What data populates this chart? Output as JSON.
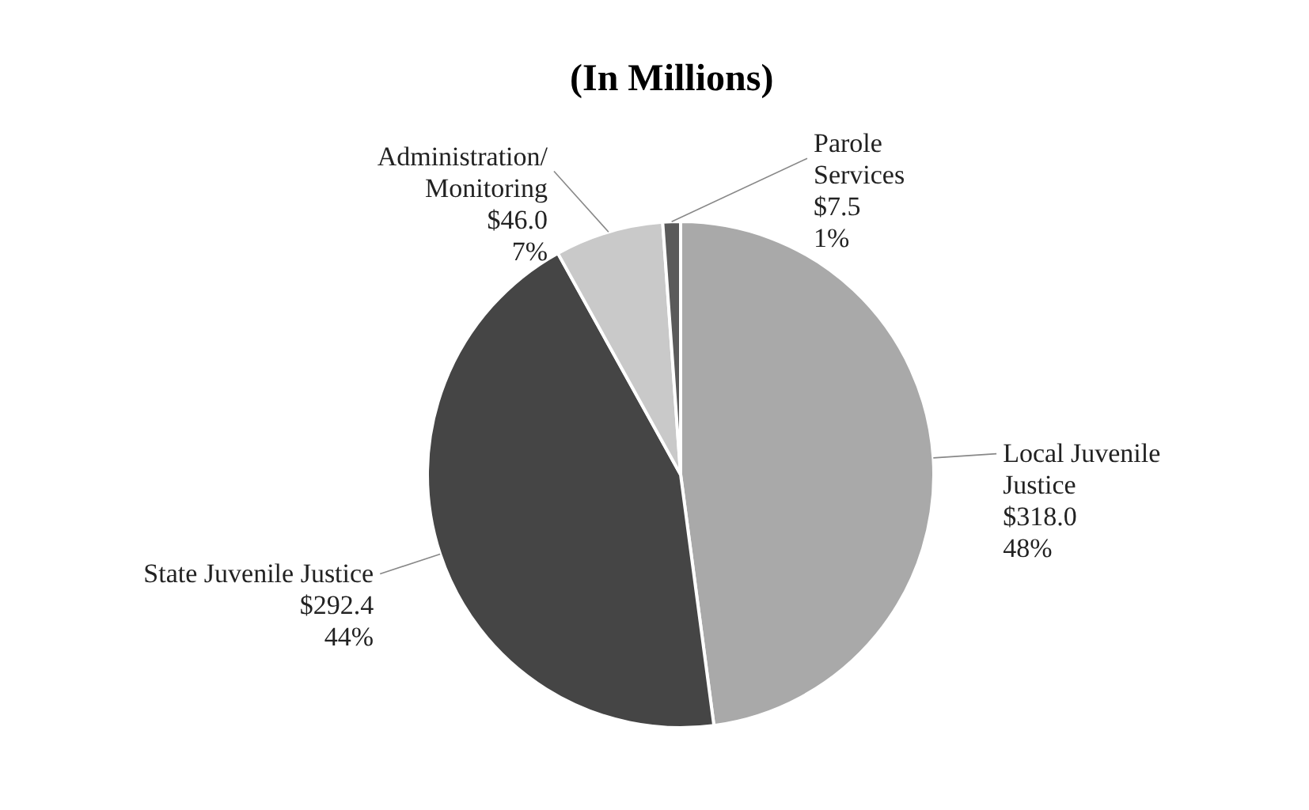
{
  "chart_data": {
    "type": "pie",
    "title": "(In Millions)",
    "categories": [
      "Local Juvenile\nJustice",
      "State Juvenile Justice",
      "Administration/\nMonitoring",
      "Parole\nServices"
    ],
    "values": [
      318.0,
      292.4,
      46.0,
      7.5
    ],
    "value_labels": [
      "$318.0\n48%",
      "$292.4\n44%",
      "$46.0\n7%",
      "$7.5\n1%"
    ],
    "colors": [
      "#a9a9a9",
      "#454545",
      "#c9c9c9",
      "#5a5a5a"
    ]
  }
}
